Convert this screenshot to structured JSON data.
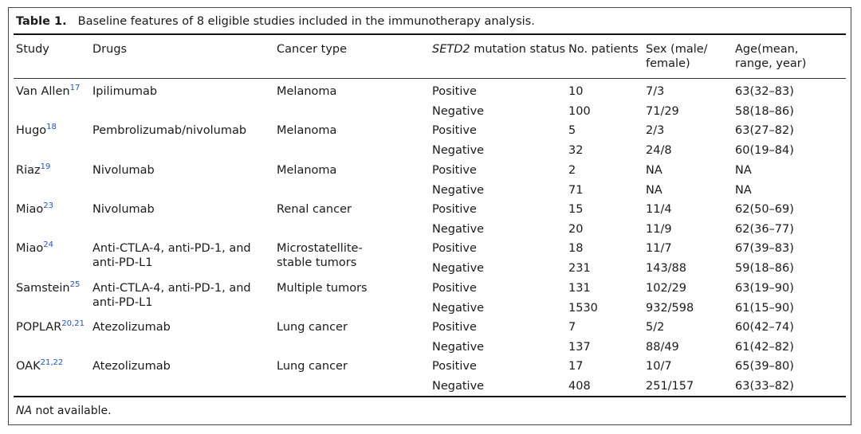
{
  "table": {
    "caption_label": "Table 1.",
    "caption_text": "Baseline features of 8 eligible studies included in the immunotherapy analysis.",
    "headers": {
      "study": "Study",
      "drugs": "Drugs",
      "cancer": "Cancer type",
      "setd2_italic": "SETD2",
      "setd2_rest": " mutation status",
      "patients": "No. patients",
      "sex_line1": "Sex (male/",
      "sex_line2": "female)",
      "age_line1": "Age(mean,",
      "age_line2": "range, year)"
    },
    "studies": [
      {
        "name": "Van Allen",
        "ref": "17",
        "drugs": [
          "Ipilimumab"
        ],
        "cancer": [
          "Melanoma"
        ],
        "rows": [
          {
            "status": "Positive",
            "n": "10",
            "sex": "7/3",
            "age": "63(32–83)"
          },
          {
            "status": "Negative",
            "n": "100",
            "sex": "71/29",
            "age": "58(18–86)"
          }
        ]
      },
      {
        "name": "Hugo",
        "ref": "18",
        "drugs": [
          "Pembrolizumab/nivolumab"
        ],
        "cancer": [
          "Melanoma"
        ],
        "rows": [
          {
            "status": "Positive",
            "n": "5",
            "sex": "2/3",
            "age": "63(27–82)"
          },
          {
            "status": "Negative",
            "n": "32",
            "sex": "24/8",
            "age": "60(19–84)"
          }
        ]
      },
      {
        "name": "Riaz",
        "ref": "19",
        "drugs": [
          "Nivolumab"
        ],
        "cancer": [
          "Melanoma"
        ],
        "rows": [
          {
            "status": "Positive",
            "n": "2",
            "sex": "NA",
            "age": "NA"
          },
          {
            "status": "Negative",
            "n": "71",
            "sex": "NA",
            "age": "NA"
          }
        ]
      },
      {
        "name": "Miao",
        "ref": "23",
        "drugs": [
          "Nivolumab"
        ],
        "cancer": [
          "Renal cancer"
        ],
        "rows": [
          {
            "status": "Positive",
            "n": "15",
            "sex": "11/4",
            "age": "62(50–69)"
          },
          {
            "status": "Negative",
            "n": "20",
            "sex": "11/9",
            "age": "62(36–77)"
          }
        ]
      },
      {
        "name": "Miao",
        "ref": "24",
        "drugs": [
          "Anti-CTLA-4, anti-PD-1, and",
          "anti-PD-L1"
        ],
        "cancer": [
          "Microstatellite-",
          "stable tumors"
        ],
        "rows": [
          {
            "status": "Positive",
            "n": "18",
            "sex": "11/7",
            "age": "67(39–83)"
          },
          {
            "status": "Negative",
            "n": "231",
            "sex": "143/88",
            "age": "59(18–86)"
          }
        ]
      },
      {
        "name": "Samstein",
        "ref": "25",
        "drugs": [
          "Anti-CTLA-4, anti-PD-1, and",
          "anti-PD-L1"
        ],
        "cancer": [
          "Multiple tumors"
        ],
        "rows": [
          {
            "status": "Positive",
            "n": "131",
            "sex": "102/29",
            "age": "63(19–90)"
          },
          {
            "status": "Negative",
            "n": "1530",
            "sex": "932/598",
            "age": "61(15–90)"
          }
        ]
      },
      {
        "name": "POPLAR",
        "ref": "20,21",
        "drugs": [
          "Atezolizumab"
        ],
        "cancer": [
          "Lung cancer"
        ],
        "rows": [
          {
            "status": "Positive",
            "n": "7",
            "sex": "5/2",
            "age": "60(42–74)"
          },
          {
            "status": "Negative",
            "n": "137",
            "sex": "88/49",
            "age": "61(42–82)"
          }
        ]
      },
      {
        "name": "OAK",
        "ref": "21,22",
        "drugs": [
          "Atezolizumab"
        ],
        "cancer": [
          "Lung cancer"
        ],
        "rows": [
          {
            "status": "Positive",
            "n": "17",
            "sex": "10/7",
            "age": "65(39–80)"
          },
          {
            "status": "Negative",
            "n": "408",
            "sex": "251/157",
            "age": "63(33–82)"
          }
        ]
      }
    ],
    "footnote_abbr": "NA",
    "footnote_text": " not available."
  },
  "colors": {
    "reference_link": "#1f4fd6",
    "rule": "#111111",
    "text": "#1a1a1a"
  }
}
